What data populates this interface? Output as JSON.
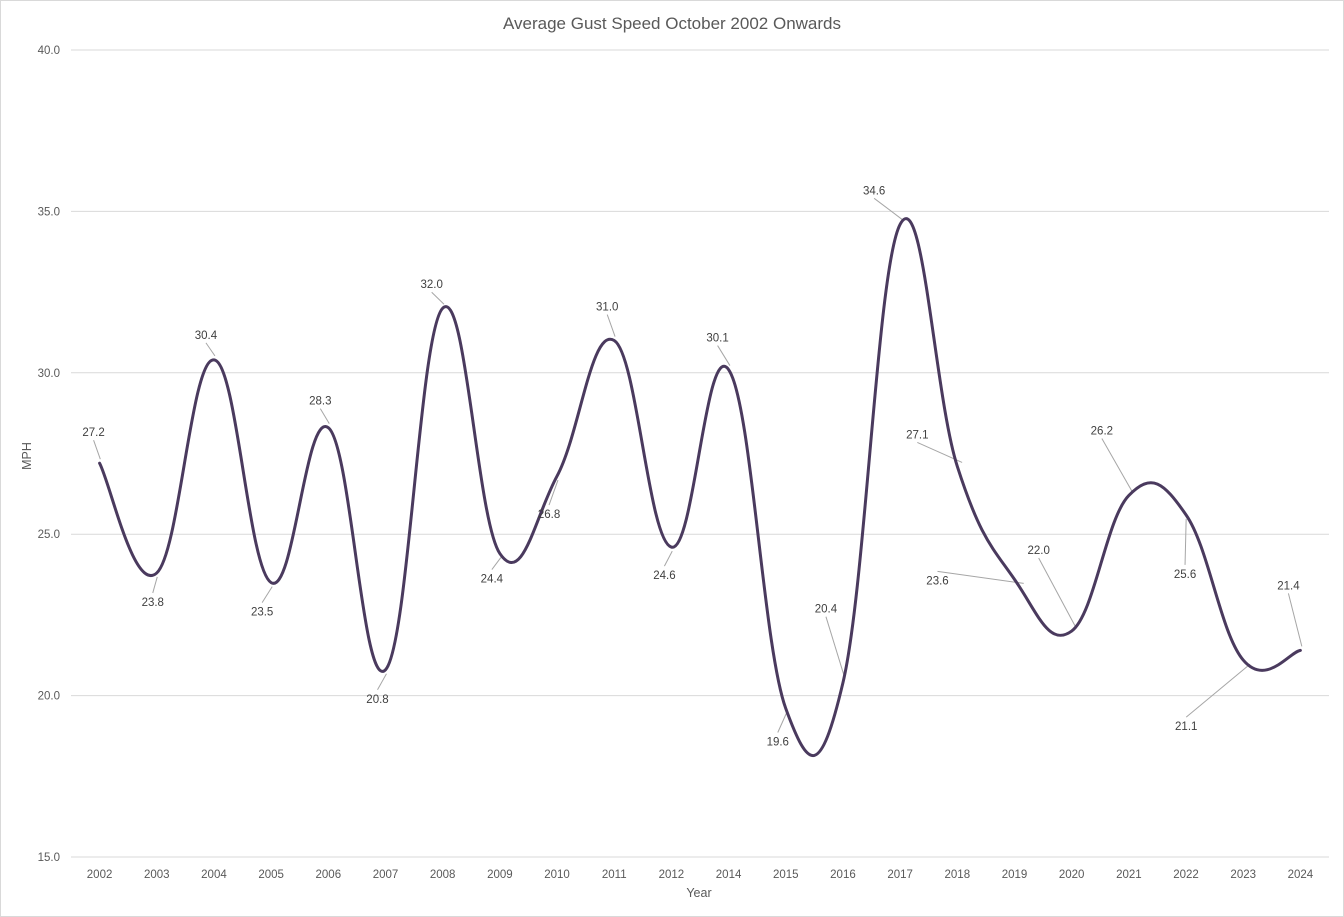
{
  "chart_data": {
    "type": "line",
    "title": "Average Gust Speed October 2002 Onwards",
    "xlabel": "Year",
    "ylabel": "MPH",
    "ylim": [
      15,
      40
    ],
    "yticks": [
      "15.0",
      "20.0",
      "25.0",
      "30.0",
      "35.0",
      "40.0"
    ],
    "grid": true,
    "legend": "none",
    "smooth": true,
    "line_color": "#4a3a5e",
    "categories": [
      "2002",
      "2003",
      "2004",
      "2005",
      "2006",
      "2007",
      "2008",
      "2009",
      "2010",
      "2011",
      "2012",
      "2014",
      "2015",
      "2016",
      "2017",
      "2018",
      "2019",
      "2020",
      "2021",
      "2022",
      "2023",
      "2024"
    ],
    "values": [
      27.2,
      23.8,
      30.4,
      23.5,
      28.3,
      20.8,
      32.0,
      24.4,
      26.8,
      31.0,
      24.6,
      30.1,
      19.6,
      20.4,
      34.6,
      27.1,
      23.6,
      22.0,
      26.2,
      25.6,
      21.1,
      21.4
    ],
    "data_labels": [
      "27.2",
      "23.8",
      "30.4",
      "23.5",
      "28.3",
      "20.8",
      "32.0",
      "24.4",
      "26.8",
      "31.0",
      "24.6",
      "30.1",
      "19.6",
      "20.4",
      "34.6",
      "27.1",
      "23.6",
      "22.0",
      "26.2",
      "25.6",
      "21.1",
      "21.4"
    ]
  }
}
